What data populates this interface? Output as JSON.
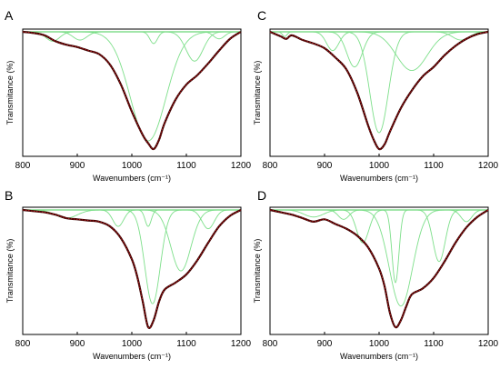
{
  "chart_data": [
    {
      "panel": "A",
      "type": "line",
      "xlabel": "Wavenumbers (cm⁻¹)",
      "ylabel": "Transmitance (%)",
      "xlim": [
        800,
        1200
      ],
      "xticks": [
        800,
        900,
        1000,
        1100,
        1200
      ],
      "ylim": [
        0,
        1
      ],
      "y_ticks_shown": false,
      "grid": false,
      "colors": {
        "spectrum": "#3a0000",
        "fit": "#cc2222",
        "components": "#7ddf8a",
        "baseline": "#22bb33"
      },
      "series": [
        {
          "x": [
            800,
            820,
            840,
            860,
            880,
            900,
            920,
            940,
            960,
            980,
            1000,
            1020,
            1030,
            1040,
            1050,
            1060,
            1080,
            1100,
            1120,
            1140,
            1160,
            1180,
            1200
          ],
          "values": [
            1.0,
            0.99,
            0.97,
            0.92,
            0.89,
            0.87,
            0.84,
            0.81,
            0.72,
            0.55,
            0.32,
            0.12,
            0.05,
            0.0,
            0.08,
            0.22,
            0.42,
            0.55,
            0.63,
            0.73,
            0.84,
            0.94,
            1.0
          ]
        }
      ],
      "components": [
        {
          "center": 855,
          "depth": 0.08,
          "width": 18
        },
        {
          "center": 905,
          "depth": 0.07,
          "width": 18
        },
        {
          "center": 1040,
          "depth": 0.1,
          "width": 10
        },
        {
          "center": 1030,
          "depth": 0.93,
          "width": 46
        },
        {
          "center": 1115,
          "depth": 0.25,
          "width": 22
        },
        {
          "center": 1160,
          "depth": 0.06,
          "width": 14
        }
      ]
    },
    {
      "panel": "C",
      "type": "line",
      "xlabel": "Wavenumbers (cm⁻¹)",
      "ylabel": "Transmitance (%)",
      "xlim": [
        800,
        1200
      ],
      "xticks": [
        800,
        900,
        1000,
        1100,
        1200
      ],
      "ylim": [
        0,
        1
      ],
      "y_ticks_shown": false,
      "grid": false,
      "colors": {
        "spectrum": "#3a0000",
        "fit": "#cc2222",
        "components": "#7ddf8a",
        "baseline": "#22bb33"
      },
      "series": [
        {
          "x": [
            800,
            820,
            830,
            840,
            860,
            880,
            900,
            920,
            940,
            960,
            980,
            990,
            1000,
            1010,
            1020,
            1040,
            1060,
            1080,
            1100,
            1120,
            1140,
            1160,
            1180,
            1200
          ],
          "values": [
            1.0,
            0.96,
            0.94,
            0.97,
            0.93,
            0.9,
            0.86,
            0.78,
            0.68,
            0.48,
            0.2,
            0.08,
            0.0,
            0.04,
            0.15,
            0.35,
            0.5,
            0.62,
            0.7,
            0.8,
            0.88,
            0.94,
            0.98,
            1.0
          ]
        }
      ],
      "components": [
        {
          "center": 827,
          "depth": 0.04,
          "width": 6
        },
        {
          "center": 915,
          "depth": 0.16,
          "width": 16
        },
        {
          "center": 955,
          "depth": 0.3,
          "width": 20
        },
        {
          "center": 1000,
          "depth": 0.86,
          "width": 24
        },
        {
          "center": 1060,
          "depth": 0.33,
          "width": 40
        },
        {
          "center": 1150,
          "depth": 0.07,
          "width": 22
        }
      ]
    },
    {
      "panel": "B",
      "type": "line",
      "xlabel": "Wavenumbers (cm⁻¹)",
      "ylabel": "Transmitance (%)",
      "xlim": [
        800,
        1200
      ],
      "xticks": [
        800,
        900,
        1000,
        1100,
        1200
      ],
      "ylim": [
        0,
        1
      ],
      "y_ticks_shown": false,
      "grid": false,
      "colors": {
        "spectrum": "#3a0000",
        "fit": "#cc2222",
        "components": "#7ddf8a",
        "baseline": "#22bb33"
      },
      "series": [
        {
          "x": [
            800,
            820,
            840,
            860,
            880,
            900,
            920,
            940,
            960,
            980,
            1000,
            1010,
            1020,
            1030,
            1040,
            1050,
            1060,
            1080,
            1100,
            1120,
            1140,
            1160,
            1180,
            1200
          ],
          "values": [
            1.0,
            0.99,
            0.98,
            0.96,
            0.93,
            0.92,
            0.91,
            0.9,
            0.86,
            0.76,
            0.58,
            0.43,
            0.22,
            0.0,
            0.06,
            0.22,
            0.32,
            0.38,
            0.45,
            0.57,
            0.72,
            0.86,
            0.95,
            1.0
          ]
        }
      ],
      "components": [
        {
          "center": 880,
          "depth": 0.07,
          "width": 28
        },
        {
          "center": 975,
          "depth": 0.14,
          "width": 14
        },
        {
          "center": 1030,
          "depth": 0.14,
          "width": 8
        },
        {
          "center": 1038,
          "depth": 0.8,
          "width": 20
        },
        {
          "center": 1090,
          "depth": 0.52,
          "width": 26
        },
        {
          "center": 1140,
          "depth": 0.16,
          "width": 16
        }
      ]
    },
    {
      "panel": "D",
      "type": "line",
      "xlabel": "Wavenumbers (cm⁻¹)",
      "ylabel": "Transmitance (%)",
      "xlim": [
        800,
        1200
      ],
      "xticks": [
        800,
        900,
        1000,
        1100,
        1200
      ],
      "ylim": [
        0,
        1
      ],
      "y_ticks_shown": false,
      "grid": false,
      "colors": {
        "spectrum": "#3a0000",
        "fit": "#cc2222",
        "components": "#7ddf8a",
        "baseline": "#22bb33"
      },
      "series": [
        {
          "x": [
            800,
            820,
            840,
            860,
            880,
            900,
            920,
            940,
            960,
            980,
            1000,
            1010,
            1020,
            1030,
            1040,
            1050,
            1060,
            1080,
            1100,
            1120,
            1140,
            1160,
            1180,
            1200
          ],
          "values": [
            1.0,
            0.98,
            0.96,
            0.93,
            0.9,
            0.92,
            0.88,
            0.84,
            0.78,
            0.68,
            0.5,
            0.35,
            0.12,
            0.0,
            0.06,
            0.18,
            0.28,
            0.33,
            0.42,
            0.56,
            0.72,
            0.85,
            0.94,
            1.0
          ]
        }
      ],
      "components": [
        {
          "center": 880,
          "depth": 0.06,
          "width": 25
        },
        {
          "center": 935,
          "depth": 0.08,
          "width": 14
        },
        {
          "center": 970,
          "depth": 0.28,
          "width": 16
        },
        {
          "center": 1030,
          "depth": 0.62,
          "width": 9
        },
        {
          "center": 1040,
          "depth": 0.82,
          "width": 30
        },
        {
          "center": 1110,
          "depth": 0.44,
          "width": 16
        },
        {
          "center": 1160,
          "depth": 0.1,
          "width": 14
        }
      ]
    }
  ]
}
